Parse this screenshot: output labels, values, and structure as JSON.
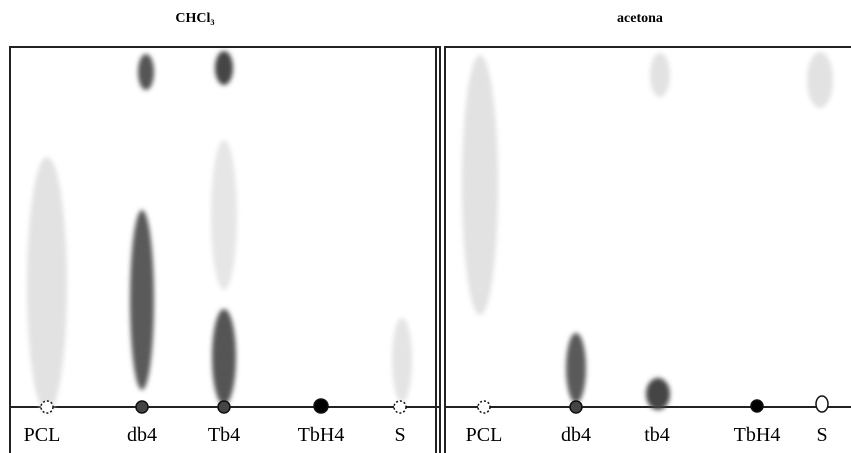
{
  "panels": [
    {
      "title": "CHCl₃",
      "lanes": [
        "PCL",
        "db4",
        "Tb4",
        "TbH4",
        "S"
      ]
    },
    {
      "title": "acetona",
      "lanes": [
        "PCL",
        "db4",
        "tb4",
        "TbH4",
        "S"
      ]
    }
  ]
}
